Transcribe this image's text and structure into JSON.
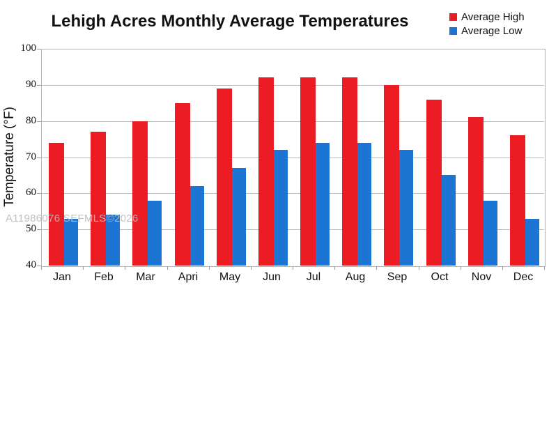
{
  "title": "Lehigh Acres Monthly Average Temperatures",
  "watermark": "A11986076 SEFMLS©2026",
  "legend": [
    {
      "label": "Average High",
      "color": "#ec1c24"
    },
    {
      "label": "Average Low",
      "color": "#1c75d3"
    }
  ],
  "chart_data": {
    "type": "bar",
    "title": "Lehigh Acres Monthly Average Temperatures",
    "xlabel": "",
    "ylabel": "Temperature (°F)",
    "categories": [
      "Jan",
      "Feb",
      "Mar",
      "Apri",
      "May",
      "Jun",
      "Jul",
      "Aug",
      "Sep",
      "Oct",
      "Nov",
      "Dec"
    ],
    "series": [
      {
        "name": "Average High",
        "color": "#ec1c24",
        "values": [
          74,
          77,
          80,
          85,
          89,
          92,
          92,
          92,
          90,
          86,
          81,
          76
        ]
      },
      {
        "name": "Average Low",
        "color": "#1c75d3",
        "values": [
          53,
          54,
          58,
          62,
          67,
          72,
          74,
          74,
          72,
          65,
          58,
          53
        ]
      }
    ],
    "ylim": [
      40,
      100
    ],
    "ytick_interval": 10,
    "yticks": [
      100,
      90,
      80,
      70,
      60,
      50,
      40
    ],
    "grid": true,
    "legend_position": "top-right"
  }
}
